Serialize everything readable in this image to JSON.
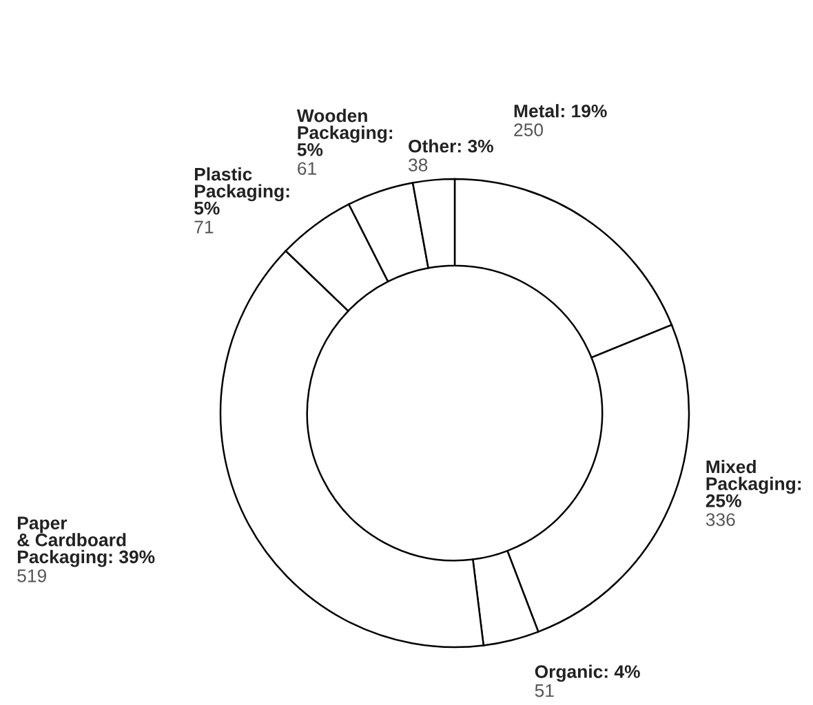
{
  "chart_data": {
    "type": "donut",
    "categories": [
      "Metal: 19%",
      "Mixed\nPackaging:\n25%",
      "Organic: 4%",
      "Paper\n& Cardboard\nPackaging: 39%",
      "Plastic\nPackaging:\n5%",
      "Wooden\nPackaging:\n5%",
      "Other: 3%"
    ],
    "values": [
      250,
      336,
      51,
      519,
      71,
      61,
      38
    ],
    "colors": [
      "#ffffff",
      "#ffffff",
      "#ffffff",
      "#ffffff",
      "#ffffff",
      "#ffffff",
      "#ffffff"
    ],
    "data_labels": true
  }
}
